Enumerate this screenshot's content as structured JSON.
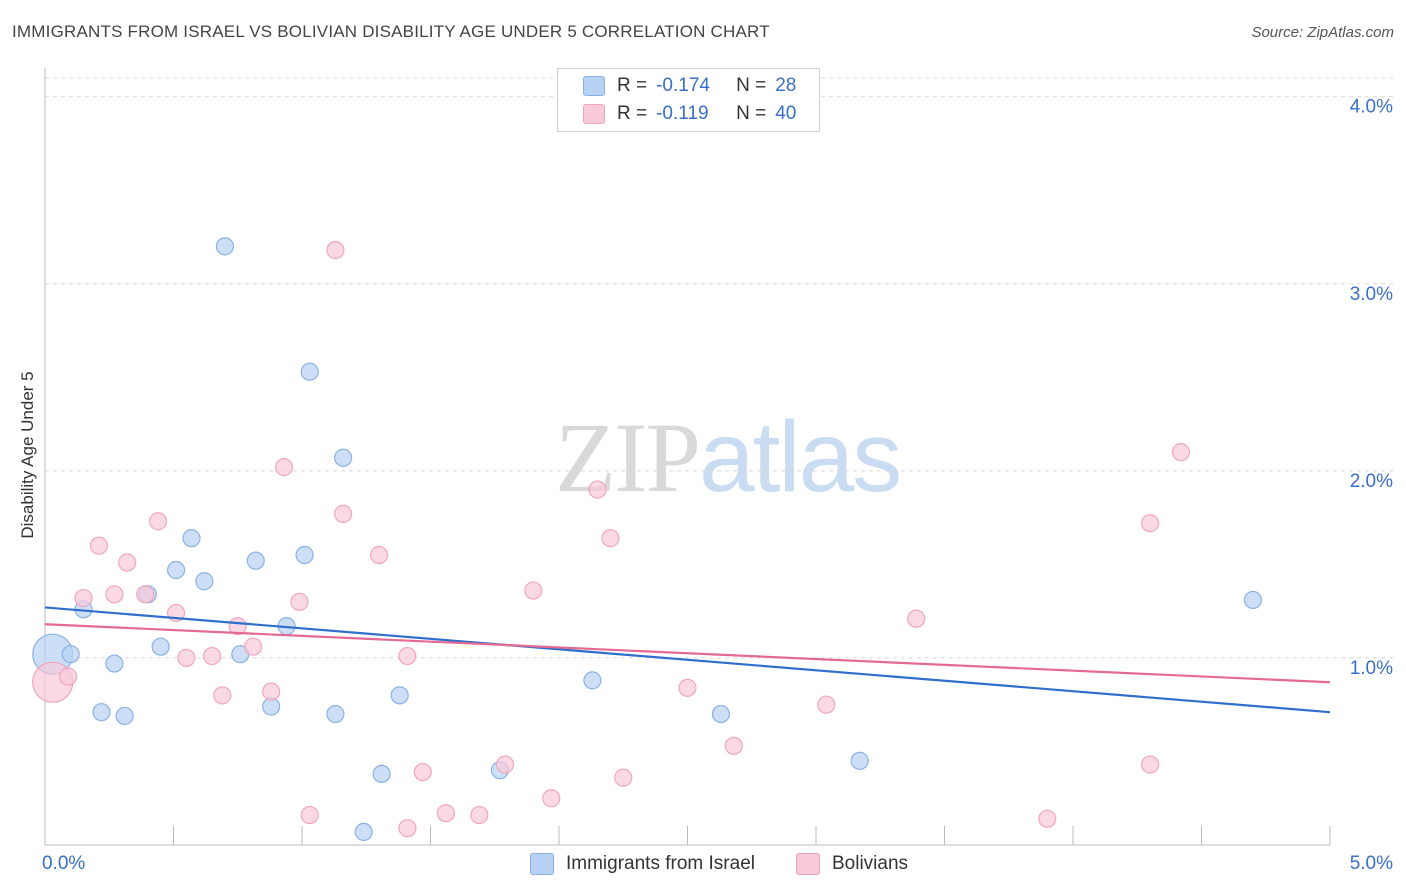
{
  "title": "IMMIGRANTS FROM ISRAEL VS BOLIVIAN DISABILITY AGE UNDER 5 CORRELATION CHART",
  "source": "Source: ZipAtlas.com",
  "watermark": {
    "zip": "ZIP",
    "atlas": "atlas"
  },
  "legend": {
    "israel": {
      "r_label": "R =",
      "r_value": "-0.174",
      "n_label": "N =",
      "n_value": "28"
    },
    "bolivians": {
      "r_label": "R =",
      "r_value": "-0.119",
      "n_label": "N =",
      "n_value": "40"
    }
  },
  "colors": {
    "israel_fill": "#b7d1f3",
    "israel_stroke": "#8ab1e6",
    "israel_line": "#2f6fcb",
    "bolivians_fill": "#f8c9d8",
    "bolivians_stroke": "#f0a6bf",
    "bolivians_line": "#e46a92",
    "axis_text": "#3a6fc7",
    "grid": "#d8d8d8"
  },
  "chart_data": {
    "type": "scatter",
    "title": "IMMIGRANTS FROM ISRAEL VS BOLIVIAN DISABILITY AGE UNDER 5 CORRELATION CHART",
    "xlabel": "",
    "ylabel": "Disability Age Under 5",
    "xlim": [
      0,
      5
    ],
    "ylim": [
      0,
      4.1
    ],
    "x_tick_labels": [
      "0.0%",
      "5.0%"
    ],
    "y_ticks": [
      1,
      2,
      3,
      4
    ],
    "y_tick_labels": [
      "1.0%",
      "2.0%",
      "3.0%",
      "4.0%"
    ],
    "legend": "bottom-center",
    "series": [
      {
        "name": "Immigrants from Israel",
        "points": [
          {
            "x": 0.03,
            "y": 1.02,
            "big": true
          },
          {
            "x": 0.1,
            "y": 1.02
          },
          {
            "x": 0.15,
            "y": 1.26
          },
          {
            "x": 0.22,
            "y": 0.71
          },
          {
            "x": 0.27,
            "y": 0.97
          },
          {
            "x": 0.31,
            "y": 0.69
          },
          {
            "x": 0.4,
            "y": 1.34
          },
          {
            "x": 0.45,
            "y": 1.06
          },
          {
            "x": 0.51,
            "y": 1.47
          },
          {
            "x": 0.57,
            "y": 1.64
          },
          {
            "x": 0.62,
            "y": 1.41
          },
          {
            "x": 0.7,
            "y": 3.2
          },
          {
            "x": 0.76,
            "y": 1.02
          },
          {
            "x": 0.82,
            "y": 1.52
          },
          {
            "x": 0.88,
            "y": 0.74
          },
          {
            "x": 0.94,
            "y": 1.17
          },
          {
            "x": 1.01,
            "y": 1.55
          },
          {
            "x": 1.03,
            "y": 2.53
          },
          {
            "x": 1.13,
            "y": 0.7
          },
          {
            "x": 1.16,
            "y": 2.07
          },
          {
            "x": 1.24,
            "y": 0.07
          },
          {
            "x": 1.31,
            "y": 0.38
          },
          {
            "x": 1.38,
            "y": 0.8
          },
          {
            "x": 1.77,
            "y": 0.4
          },
          {
            "x": 2.13,
            "y": 0.88
          },
          {
            "x": 2.63,
            "y": 0.7
          },
          {
            "x": 3.17,
            "y": 0.45
          },
          {
            "x": 4.7,
            "y": 1.31
          }
        ],
        "trend": {
          "x": [
            0,
            5
          ],
          "y": [
            1.27,
            0.71
          ]
        }
      },
      {
        "name": "Bolivians",
        "points": [
          {
            "x": 0.03,
            "y": 0.87,
            "big": true
          },
          {
            "x": 0.09,
            "y": 0.9
          },
          {
            "x": 0.15,
            "y": 1.32
          },
          {
            "x": 0.21,
            "y": 1.6
          },
          {
            "x": 0.27,
            "y": 1.34
          },
          {
            "x": 0.32,
            "y": 1.51
          },
          {
            "x": 0.39,
            "y": 1.34
          },
          {
            "x": 0.44,
            "y": 1.73
          },
          {
            "x": 0.51,
            "y": 1.24
          },
          {
            "x": 0.55,
            "y": 1.0
          },
          {
            "x": 0.65,
            "y": 1.01
          },
          {
            "x": 0.69,
            "y": 0.8
          },
          {
            "x": 0.75,
            "y": 1.17
          },
          {
            "x": 0.81,
            "y": 1.06
          },
          {
            "x": 0.88,
            "y": 0.82
          },
          {
            "x": 0.93,
            "y": 2.02
          },
          {
            "x": 0.99,
            "y": 1.3
          },
          {
            "x": 1.03,
            "y": 0.16
          },
          {
            "x": 1.13,
            "y": 3.18
          },
          {
            "x": 1.16,
            "y": 1.77
          },
          {
            "x": 1.3,
            "y": 1.55
          },
          {
            "x": 1.41,
            "y": 0.09
          },
          {
            "x": 1.41,
            "y": 1.01
          },
          {
            "x": 1.47,
            "y": 0.39
          },
          {
            "x": 1.56,
            "y": 0.17
          },
          {
            "x": 1.69,
            "y": 0.16
          },
          {
            "x": 1.79,
            "y": 0.43
          },
          {
            "x": 1.9,
            "y": 1.36
          },
          {
            "x": 1.97,
            "y": 0.25
          },
          {
            "x": 2.15,
            "y": 1.9
          },
          {
            "x": 2.2,
            "y": 1.64
          },
          {
            "x": 2.25,
            "y": 0.36
          },
          {
            "x": 2.5,
            "y": 0.84
          },
          {
            "x": 2.68,
            "y": 0.53
          },
          {
            "x": 3.04,
            "y": 0.75
          },
          {
            "x": 3.39,
            "y": 1.21
          },
          {
            "x": 3.9,
            "y": 0.14
          },
          {
            "x": 4.3,
            "y": 1.72
          },
          {
            "x": 4.3,
            "y": 0.43
          },
          {
            "x": 4.42,
            "y": 2.1
          }
        ],
        "trend": {
          "x": [
            0,
            5
          ],
          "y": [
            1.18,
            0.87
          ]
        }
      }
    ]
  }
}
